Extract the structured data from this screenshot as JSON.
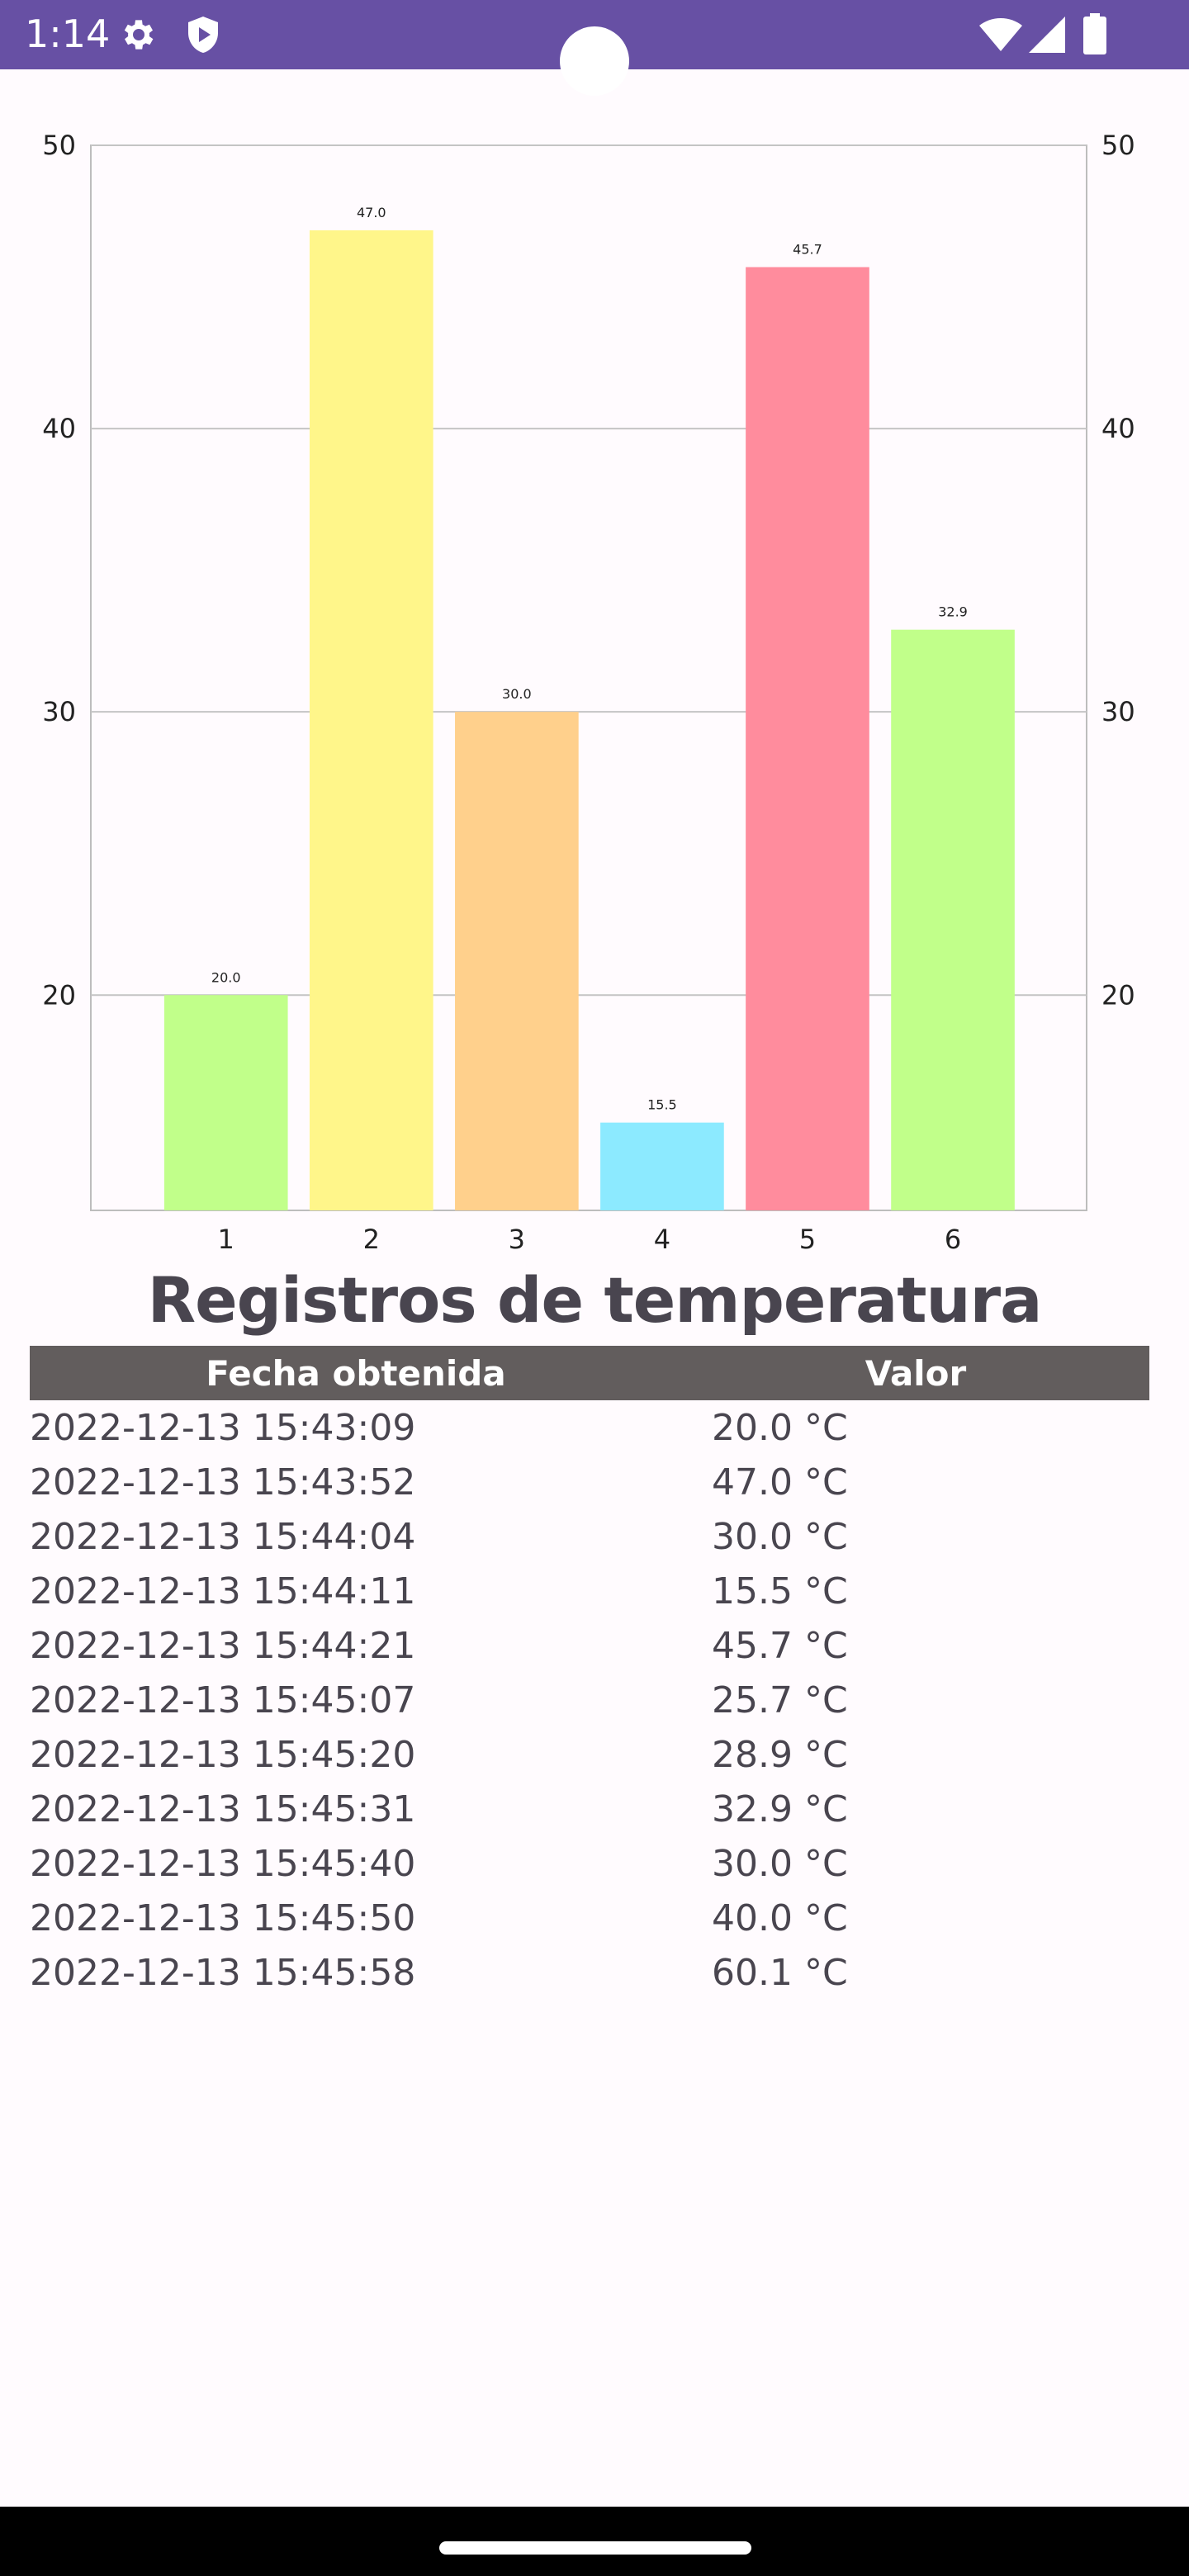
{
  "status_bar": {
    "time": "1:14",
    "icons": [
      "gear-icon",
      "shield-play-icon",
      "wifi-icon",
      "signal-icon",
      "battery-icon"
    ],
    "background": "#6750a4"
  },
  "chart_data": {
    "type": "bar",
    "categories": [
      "1",
      "2",
      "3",
      "4",
      "5",
      "6"
    ],
    "values": [
      20.0,
      47.0,
      30.0,
      15.5,
      45.7,
      32.9
    ],
    "value_labels": [
      "20.0",
      "47.0",
      "30.0",
      "15.5",
      "45.7",
      "32.9"
    ],
    "colors": [
      "#c1ff8a",
      "#fff68a",
      "#ffd08c",
      "#8ceaff",
      "#ff8c9d",
      "#c1ff8a"
    ],
    "title": "",
    "xlabel": "",
    "ylabel": "",
    "ylim": [
      12.4,
      50
    ],
    "yticks": [
      20,
      30,
      40,
      50
    ],
    "grid": true,
    "legend": "none",
    "right_axis": true
  },
  "heading": "Registros de temperatura",
  "table": {
    "headers": {
      "date": "Fecha obtenida",
      "value": "Valor"
    },
    "rows": [
      {
        "date": "2022-12-13 15:43:09",
        "value": "20.0 °C"
      },
      {
        "date": "2022-12-13 15:43:52",
        "value": "47.0 °C"
      },
      {
        "date": "2022-12-13 15:44:04",
        "value": "30.0 °C"
      },
      {
        "date": "2022-12-13 15:44:11",
        "value": "15.5 °C"
      },
      {
        "date": "2022-12-13 15:44:21",
        "value": "45.7 °C"
      },
      {
        "date": "2022-12-13 15:45:07",
        "value": "25.7 °C"
      },
      {
        "date": "2022-12-13 15:45:20",
        "value": "28.9 °C"
      },
      {
        "date": "2022-12-13 15:45:31",
        "value": "32.9 °C"
      },
      {
        "date": "2022-12-13 15:45:40",
        "value": "30.0 °C"
      },
      {
        "date": "2022-12-13 15:45:50",
        "value": "40.0 °C"
      },
      {
        "date": "2022-12-13 15:45:58",
        "value": "60.1 °C"
      }
    ]
  }
}
